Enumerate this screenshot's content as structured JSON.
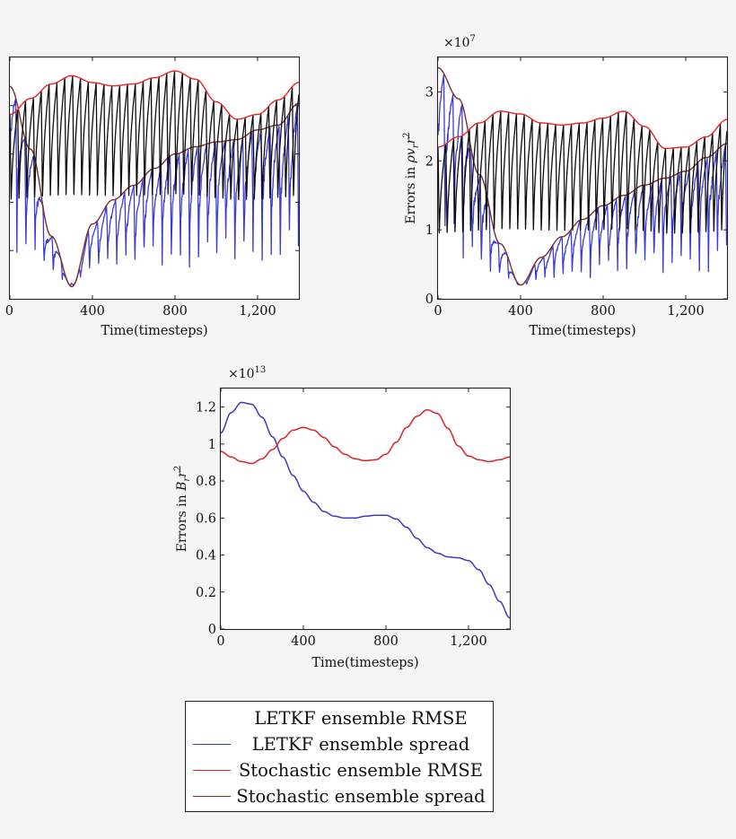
{
  "legend": {
    "items": [
      {
        "label": "LETKF ensemble RMSE",
        "color": "#0d0d0d"
      },
      {
        "label": "LETKF ensemble spread",
        "color": "#3b3bd6"
      },
      {
        "label": "Stochastic ensemble RMSE",
        "color": "#e8262a"
      },
      {
        "label": "Stochastic ensemble spread",
        "color": "#7a2e2e"
      }
    ]
  },
  "chart_data": [
    {
      "type": "line",
      "title": "",
      "xlabel": "Time(timesteps)",
      "ylabel": "",
      "xlim": [
        0,
        1400
      ],
      "ylim": [
        0,
        5
      ],
      "x_ticks": [
        0,
        400,
        800,
        1200
      ],
      "x_tick_labels": [
        "0",
        "400",
        "800",
        "1,200"
      ],
      "y_ticks": [
        1,
        2,
        3,
        4
      ],
      "y_tick_labels": [],
      "series": [
        {
          "name": "LETKF ensemble RMSE",
          "color": "#0d0d0d",
          "x": [
            0,
            100,
            200,
            300,
            400,
            500,
            600,
            700,
            800,
            900,
            1000,
            1100,
            1200,
            1300,
            1400
          ],
          "y": [
            3.82,
            4.15,
            4.45,
            4.62,
            4.48,
            4.41,
            4.45,
            4.58,
            4.72,
            4.55,
            4.08,
            3.72,
            3.82,
            4.12,
            4.48
          ]
        },
        {
          "name": "LETKF ensemble spread",
          "color": "#3b3bd6",
          "x": [
            0,
            100,
            200,
            300,
            400,
            500,
            600,
            700,
            800,
            900,
            1000,
            1100,
            1200,
            1300,
            1400
          ],
          "y": [
            4.4,
            3.1,
            1.3,
            0.25,
            1.55,
            2.05,
            2.35,
            2.7,
            3.0,
            3.15,
            3.25,
            3.3,
            3.5,
            3.6,
            4.05
          ]
        },
        {
          "name": "Stochastic ensemble RMSE",
          "color": "#e8262a",
          "x": [
            0,
            100,
            200,
            300,
            400,
            500,
            600,
            700,
            800,
            900,
            1000,
            1100,
            1200,
            1300,
            1400
          ],
          "y": [
            3.82,
            4.15,
            4.45,
            4.62,
            4.48,
            4.41,
            4.45,
            4.58,
            4.72,
            4.55,
            4.08,
            3.72,
            3.82,
            4.12,
            4.48
          ]
        },
        {
          "name": "Stochastic ensemble spread",
          "color": "#7a2e2e",
          "x": [
            0,
            100,
            200,
            300,
            400,
            500,
            600,
            700,
            800,
            900,
            1000,
            1100,
            1200,
            1300,
            1400
          ],
          "y": [
            4.4,
            3.1,
            1.3,
            0.25,
            1.55,
            2.05,
            2.35,
            2.7,
            3.0,
            3.15,
            3.25,
            3.3,
            3.5,
            3.6,
            4.05
          ]
        }
      ]
    },
    {
      "type": "line",
      "title": "",
      "xlabel": "Time(timesteps)",
      "ylabel": "Errors in ρv_r r²",
      "ylabel_main": "Errors in ",
      "ylabel_math": "ρv",
      "ylabel_sub": "r",
      "ylabel_tail": "r",
      "ylabel_sup": "2",
      "scale_label": "×10",
      "scale_exp": "7",
      "xlim": [
        0,
        1400
      ],
      "ylim": [
        0,
        3.5
      ],
      "x_ticks": [
        0,
        400,
        800,
        1200
      ],
      "x_tick_labels": [
        "0",
        "400",
        "800",
        "1,200"
      ],
      "y_ticks": [
        0,
        1,
        2,
        3
      ],
      "y_tick_labels": [
        "0",
        "1",
        "2",
        "3"
      ],
      "series": [
        {
          "name": "LETKF ensemble RMSE",
          "color": "#0d0d0d",
          "x": [
            0,
            100,
            200,
            300,
            400,
            500,
            600,
            700,
            800,
            900,
            1000,
            1100,
            1200,
            1300,
            1400
          ],
          "y": [
            2.2,
            2.35,
            2.55,
            2.72,
            2.68,
            2.55,
            2.52,
            2.55,
            2.62,
            2.72,
            2.5,
            2.18,
            2.2,
            2.35,
            2.6
          ]
        },
        {
          "name": "LETKF ensemble spread",
          "color": "#3b3bd6",
          "x": [
            0,
            100,
            200,
            300,
            400,
            500,
            600,
            700,
            800,
            900,
            1000,
            1100,
            1200,
            1300,
            1400
          ],
          "y": [
            3.35,
            2.9,
            1.8,
            0.8,
            0.2,
            0.6,
            0.9,
            1.15,
            1.35,
            1.5,
            1.65,
            1.75,
            1.85,
            2.05,
            2.25
          ]
        },
        {
          "name": "Stochastic ensemble RMSE",
          "color": "#e8262a",
          "x": [
            0,
            100,
            200,
            300,
            400,
            500,
            600,
            700,
            800,
            900,
            1000,
            1100,
            1200,
            1300,
            1400
          ],
          "y": [
            2.2,
            2.35,
            2.55,
            2.72,
            2.68,
            2.55,
            2.52,
            2.55,
            2.62,
            2.72,
            2.5,
            2.18,
            2.2,
            2.35,
            2.6
          ]
        },
        {
          "name": "Stochastic ensemble spread",
          "color": "#7a2e2e",
          "x": [
            0,
            100,
            200,
            300,
            400,
            500,
            600,
            700,
            800,
            900,
            1000,
            1100,
            1200,
            1300,
            1400
          ],
          "y": [
            3.35,
            2.9,
            1.8,
            0.8,
            0.2,
            0.6,
            0.9,
            1.15,
            1.35,
            1.5,
            1.65,
            1.75,
            1.85,
            2.05,
            2.25
          ]
        }
      ]
    },
    {
      "type": "line",
      "title": "",
      "xlabel": "Time(timesteps)",
      "ylabel": "Errors in B_r r²",
      "ylabel_main": "Errors in ",
      "ylabel_math": "B",
      "ylabel_sub": "r",
      "ylabel_tail": "r",
      "ylabel_sup": "2",
      "scale_label": "×10",
      "scale_exp": "13",
      "xlim": [
        0,
        1400
      ],
      "ylim": [
        0,
        1.3
      ],
      "x_ticks": [
        0,
        400,
        800,
        1200
      ],
      "x_tick_labels": [
        "0",
        "400",
        "800",
        "1,200"
      ],
      "y_ticks": [
        0,
        0.2,
        0.4,
        0.6,
        0.8,
        1,
        1.2
      ],
      "y_tick_labels": [
        "0",
        "0.2",
        "0.4",
        "0.6",
        "0.8",
        "1",
        "1.2"
      ],
      "series": [
        {
          "name": "LETKF ensemble RMSE",
          "color": "#0d0d0d",
          "x": [
            0,
            50,
            100,
            150,
            200,
            250,
            300,
            350,
            400,
            450,
            500,
            550,
            600,
            650,
            700,
            750,
            800,
            850,
            900,
            950,
            1000,
            1050,
            1100,
            1150,
            1200,
            1250,
            1300,
            1350,
            1400
          ],
          "y": [
            0.96,
            0.93,
            0.905,
            0.895,
            0.92,
            0.97,
            1.03,
            1.075,
            1.09,
            1.075,
            1.035,
            0.985,
            0.945,
            0.92,
            0.91,
            0.915,
            0.945,
            1.01,
            1.09,
            1.15,
            1.185,
            1.165,
            1.085,
            0.99,
            0.935,
            0.915,
            0.905,
            0.915,
            0.93
          ]
        },
        {
          "name": "LETKF ensemble spread",
          "color": "#3b3bd6",
          "x": [
            0,
            50,
            100,
            150,
            200,
            250,
            300,
            350,
            400,
            450,
            500,
            550,
            600,
            650,
            700,
            750,
            800,
            850,
            900,
            950,
            1000,
            1050,
            1100,
            1150,
            1200,
            1250,
            1300,
            1350,
            1400
          ],
          "y": [
            1.06,
            1.17,
            1.225,
            1.215,
            1.145,
            1.04,
            0.93,
            0.83,
            0.745,
            0.685,
            0.635,
            0.61,
            0.6,
            0.6,
            0.61,
            0.615,
            0.615,
            0.595,
            0.55,
            0.49,
            0.44,
            0.41,
            0.39,
            0.385,
            0.37,
            0.32,
            0.24,
            0.15,
            0.06
          ]
        },
        {
          "name": "Stochastic ensemble RMSE",
          "color": "#e8262a",
          "x": [
            0,
            50,
            100,
            150,
            200,
            250,
            300,
            350,
            400,
            450,
            500,
            550,
            600,
            650,
            700,
            750,
            800,
            850,
            900,
            950,
            1000,
            1050,
            1100,
            1150,
            1200,
            1250,
            1300,
            1350,
            1400
          ],
          "y": [
            0.96,
            0.93,
            0.905,
            0.895,
            0.92,
            0.97,
            1.03,
            1.075,
            1.09,
            1.075,
            1.035,
            0.985,
            0.945,
            0.92,
            0.91,
            0.915,
            0.945,
            1.01,
            1.09,
            1.15,
            1.185,
            1.165,
            1.085,
            0.99,
            0.935,
            0.915,
            0.905,
            0.915,
            0.93
          ]
        },
        {
          "name": "Stochastic ensemble spread",
          "color": "#7a2e2e",
          "x": [
            0,
            50,
            100,
            150,
            200,
            250,
            300,
            350,
            400,
            450,
            500,
            550,
            600,
            650,
            700,
            750,
            800,
            850,
            900,
            950,
            1000,
            1050,
            1100,
            1150,
            1200,
            1250,
            1300,
            1350,
            1400
          ],
          "y": [
            1.06,
            1.17,
            1.225,
            1.215,
            1.145,
            1.04,
            0.93,
            0.83,
            0.745,
            0.685,
            0.635,
            0.61,
            0.6,
            0.6,
            0.61,
            0.615,
            0.615,
            0.595,
            0.55,
            0.49,
            0.44,
            0.41,
            0.39,
            0.385,
            0.37,
            0.32,
            0.24,
            0.15,
            0.06
          ]
        }
      ]
    }
  ]
}
